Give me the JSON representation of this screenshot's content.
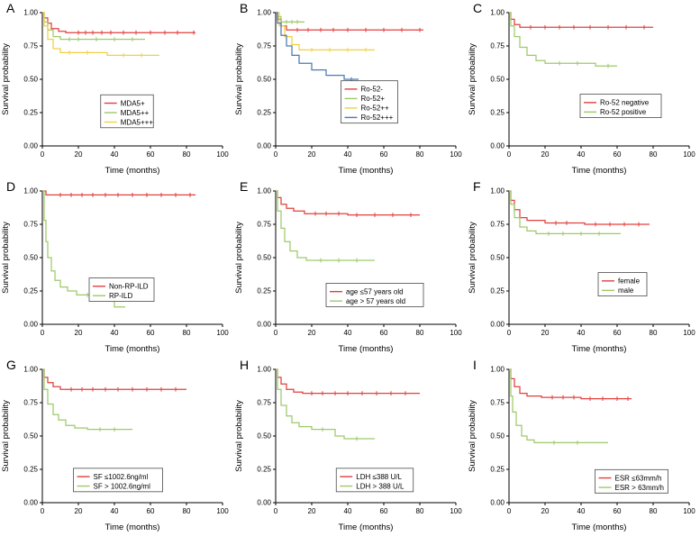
{
  "figure": {
    "ylabel": "Survival probability",
    "xlabel": "Time (months)",
    "colors": {
      "red": "#e2403c",
      "green": "#9dc969",
      "yellow": "#f0d143",
      "blue": "#4a7ab8"
    },
    "panels": [
      {
        "label": "A",
        "chart_data": {
          "type": "line",
          "step": true,
          "xlabel": "Time (months)",
          "ylabel": "Survival probability",
          "xlim": [
            0,
            100
          ],
          "ylim": [
            0,
            1
          ],
          "xticks": [
            0,
            20,
            40,
            60,
            80,
            100
          ],
          "yticks": [
            0,
            0.25,
            0.5,
            0.75,
            1
          ],
          "legend": {
            "x": 0.47,
            "y": 0.26
          },
          "series": [
            {
              "name": "MDA5+",
              "color": "#e2403c",
              "x": [
                0,
                1,
                3,
                5,
                9,
                13,
                85
              ],
              "y": [
                1,
                0.96,
                0.92,
                0.88,
                0.86,
                0.85,
                0.85
              ],
              "censors": [
                20,
                24,
                28,
                33,
                38,
                45,
                52,
                60,
                68,
                75,
                84
              ]
            },
            {
              "name": "MDA5++",
              "color": "#9dc969",
              "x": [
                0,
                1,
                3,
                6,
                10,
                57
              ],
              "y": [
                1,
                0.93,
                0.87,
                0.82,
                0.8,
                0.8
              ],
              "censors": [
                15,
                20,
                30,
                40,
                50
              ]
            },
            {
              "name": "MDA5+++",
              "color": "#f0d143",
              "x": [
                0,
                1,
                3,
                6,
                10,
                32,
                36,
                65
              ],
              "y": [
                1,
                0.9,
                0.8,
                0.73,
                0.7,
                0.7,
                0.68,
                0.68
              ],
              "censors": [
                15,
                25,
                45,
                55
              ]
            }
          ]
        }
      },
      {
        "label": "B",
        "chart_data": {
          "type": "line",
          "step": true,
          "xlabel": "Time (months)",
          "ylabel": "Survival probability",
          "xlim": [
            0,
            100
          ],
          "ylim": [
            0,
            1
          ],
          "xticks": [
            0,
            20,
            40,
            60,
            80,
            100
          ],
          "yticks": [
            0,
            0.25,
            0.5,
            0.75,
            1
          ],
          "legend": {
            "x": 0.52,
            "y": 0.33
          },
          "series": [
            {
              "name": "Ro-52-",
              "color": "#e2403c",
              "x": [
                0,
                1,
                3,
                6,
                82
              ],
              "y": [
                1,
                0.95,
                0.9,
                0.87,
                0.87
              ],
              "censors": [
                12,
                18,
                25,
                32,
                40,
                50,
                60,
                70,
                80
              ]
            },
            {
              "name": "Ro-52+",
              "color": "#9dc969",
              "x": [
                0,
                1,
                3,
                16
              ],
              "y": [
                1,
                0.97,
                0.93,
                0.93
              ],
              "censors": [
                6,
                9,
                12
              ]
            },
            {
              "name": "Ro-52++",
              "color": "#f0d143",
              "x": [
                0,
                2,
                5,
                9,
                13,
                55
              ],
              "y": [
                1,
                0.9,
                0.82,
                0.76,
                0.72,
                0.72
              ],
              "censors": [
                20,
                30,
                40,
                50
              ]
            },
            {
              "name": "Ro-52+++",
              "color": "#4a7ab8",
              "x": [
                0,
                1,
                3,
                6,
                9,
                13,
                20,
                28,
                38,
                46
              ],
              "y": [
                1,
                0.92,
                0.83,
                0.75,
                0.68,
                0.62,
                0.57,
                0.53,
                0.5,
                0.5
              ],
              "censors": [
                42
              ]
            }
          ]
        }
      },
      {
        "label": "C",
        "chart_data": {
          "type": "line",
          "step": true,
          "xlabel": "Time (months)",
          "ylabel": "Survival probability",
          "xlim": [
            0,
            100
          ],
          "ylim": [
            0,
            1
          ],
          "xticks": [
            0,
            20,
            40,
            60,
            80,
            100
          ],
          "yticks": [
            0,
            0.25,
            0.5,
            0.75,
            1
          ],
          "legend": {
            "x": 0.62,
            "y": 0.3
          },
          "series": [
            {
              "name": "Ro-52 negative",
              "color": "#e2403c",
              "x": [
                0,
                1,
                3,
                6,
                80
              ],
              "y": [
                1,
                0.95,
                0.91,
                0.89,
                0.89
              ],
              "censors": [
                12,
                20,
                28,
                36,
                45,
                55,
                65,
                75
              ]
            },
            {
              "name": "Ro-52 positive",
              "color": "#9dc969",
              "x": [
                0,
                1,
                3,
                6,
                10,
                15,
                20,
                48,
                60
              ],
              "y": [
                1,
                0.9,
                0.82,
                0.74,
                0.68,
                0.64,
                0.62,
                0.6,
                0.6
              ],
              "censors": [
                28,
                38,
                55
              ]
            }
          ]
        }
      },
      {
        "label": "D",
        "chart_data": {
          "type": "line",
          "step": true,
          "xlabel": "Time (months)",
          "ylabel": "Survival probability",
          "xlim": [
            0,
            100
          ],
          "ylim": [
            0,
            1
          ],
          "xticks": [
            0,
            20,
            40,
            60,
            80,
            100
          ],
          "yticks": [
            0,
            0.25,
            0.5,
            0.75,
            1
          ],
          "legend": {
            "x": 0.44,
            "y": 0.26
          },
          "series": [
            {
              "name": "Non-RP-ILD",
              "color": "#e2403c",
              "x": [
                0,
                2,
                85
              ],
              "y": [
                1,
                0.97,
                0.97
              ],
              "censors": [
                10,
                16,
                22,
                28,
                35,
                42,
                50,
                58,
                66,
                74,
                82
              ]
            },
            {
              "name": "RP-ILD",
              "color": "#9dc969",
              "x": [
                0,
                1,
                2,
                3,
                5,
                7,
                10,
                14,
                19,
                34,
                40,
                46
              ],
              "y": [
                1,
                0.78,
                0.62,
                0.5,
                0.4,
                0.33,
                0.28,
                0.25,
                0.22,
                0.22,
                0.13,
                0.13
              ],
              "censors": [
                25
              ]
            }
          ]
        }
      },
      {
        "label": "E",
        "chart_data": {
          "type": "line",
          "step": true,
          "xlabel": "Time (months)",
          "ylabel": "Survival probability",
          "xlim": [
            0,
            100
          ],
          "ylim": [
            0,
            1
          ],
          "xticks": [
            0,
            20,
            40,
            60,
            80,
            100
          ],
          "yticks": [
            0,
            0.25,
            0.5,
            0.75,
            1
          ],
          "legend": {
            "x": 0.55,
            "y": 0.22
          },
          "series": [
            {
              "name": "age ≤57 years old",
              "color": "#e2403c",
              "x": [
                0,
                1,
                3,
                6,
                10,
                16,
                40,
                80
              ],
              "y": [
                1,
                0.95,
                0.9,
                0.87,
                0.85,
                0.83,
                0.82,
                0.82
              ],
              "censors": [
                22,
                28,
                35,
                45,
                55,
                65,
                75
              ]
            },
            {
              "name": "age > 57 years old",
              "color": "#9dc969",
              "x": [
                0,
                1,
                3,
                5,
                8,
                12,
                17,
                55
              ],
              "y": [
                1,
                0.85,
                0.72,
                0.62,
                0.55,
                0.5,
                0.48,
                0.48
              ],
              "censors": [
                25,
                35,
                45
              ]
            }
          ]
        }
      },
      {
        "label": "F",
        "chart_data": {
          "type": "line",
          "step": true,
          "xlabel": "Time (months)",
          "ylabel": "Survival probability",
          "xlim": [
            0,
            100
          ],
          "ylim": [
            0,
            1
          ],
          "xticks": [
            0,
            20,
            40,
            60,
            80,
            100
          ],
          "yticks": [
            0,
            0.25,
            0.5,
            0.75,
            1
          ],
          "legend": {
            "x": 0.63,
            "y": 0.3
          },
          "series": [
            {
              "name": "female",
              "color": "#e2403c",
              "x": [
                0,
                1,
                3,
                6,
                10,
                20,
                42,
                78
              ],
              "y": [
                1,
                0.93,
                0.86,
                0.8,
                0.78,
                0.76,
                0.75,
                0.75
              ],
              "censors": [
                26,
                32,
                48,
                56,
                64,
                72
              ]
            },
            {
              "name": "male",
              "color": "#9dc969",
              "x": [
                0,
                1,
                3,
                6,
                10,
                15,
                62
              ],
              "y": [
                1,
                0.9,
                0.8,
                0.73,
                0.7,
                0.68,
                0.68
              ],
              "censors": [
                22,
                30,
                40,
                50
              ]
            }
          ]
        }
      },
      {
        "label": "G",
        "chart_data": {
          "type": "line",
          "step": true,
          "xlabel": "Time (months)",
          "ylabel": "Survival probability",
          "xlim": [
            0,
            100
          ],
          "ylim": [
            0,
            1
          ],
          "xticks": [
            0,
            20,
            40,
            60,
            80,
            100
          ],
          "yticks": [
            0,
            0.25,
            0.5,
            0.75,
            1
          ],
          "legend": {
            "x": 0.42,
            "y": 0.17
          },
          "series": [
            {
              "name": "SF ≤1002.6ng/ml",
              "color": "#e2403c",
              "x": [
                0,
                1,
                3,
                6,
                10,
                80
              ],
              "y": [
                1,
                0.94,
                0.9,
                0.87,
                0.85,
                0.85
              ],
              "censors": [
                16,
                22,
                28,
                35,
                42,
                50,
                58,
                66,
                74
              ]
            },
            {
              "name": "SF > 1002.6ng/ml",
              "color": "#9dc969",
              "x": [
                0,
                1,
                3,
                6,
                9,
                13,
                18,
                25,
                50
              ],
              "y": [
                1,
                0.85,
                0.74,
                0.66,
                0.62,
                0.58,
                0.56,
                0.55,
                0.55
              ],
              "censors": [
                32,
                40
              ]
            }
          ]
        }
      },
      {
        "label": "H",
        "chart_data": {
          "type": "line",
          "step": true,
          "xlabel": "Time (months)",
          "ylabel": "Survival probability",
          "xlim": [
            0,
            100
          ],
          "ylim": [
            0,
            1
          ],
          "xticks": [
            0,
            20,
            40,
            60,
            80,
            100
          ],
          "yticks": [
            0,
            0.25,
            0.5,
            0.75,
            1
          ],
          "legend": {
            "x": 0.55,
            "y": 0.17
          },
          "series": [
            {
              "name": "LDH ≤388 U/L",
              "color": "#e2403c",
              "x": [
                0,
                1,
                3,
                6,
                10,
                15,
                80
              ],
              "y": [
                1,
                0.94,
                0.89,
                0.85,
                0.83,
                0.82,
                0.82
              ],
              "censors": [
                20,
                26,
                33,
                40,
                48,
                56,
                64,
                72
              ]
            },
            {
              "name": "LDH > 388 U/L",
              "color": "#9dc969",
              "x": [
                0,
                1,
                3,
                6,
                9,
                13,
                20,
                33,
                38,
                55
              ],
              "y": [
                1,
                0.85,
                0.73,
                0.65,
                0.6,
                0.57,
                0.55,
                0.5,
                0.48,
                0.48
              ],
              "censors": [
                26,
                45
              ]
            }
          ]
        }
      },
      {
        "label": "I",
        "chart_data": {
          "type": "line",
          "step": true,
          "xlabel": "Time (months)",
          "ylabel": "Survival probability",
          "xlim": [
            0,
            100
          ],
          "ylim": [
            0,
            1
          ],
          "xticks": [
            0,
            20,
            40,
            60,
            80,
            100
          ],
          "yticks": [
            0,
            0.25,
            0.5,
            0.75,
            1
          ],
          "legend": {
            "x": 0.68,
            "y": 0.16
          },
          "series": [
            {
              "name": "ESR ≤63mm/h",
              "color": "#e2403c",
              "x": [
                0,
                1,
                3,
                6,
                10,
                18,
                40,
                68
              ],
              "y": [
                1,
                0.93,
                0.87,
                0.82,
                0.8,
                0.79,
                0.78,
                0.78
              ],
              "censors": [
                24,
                30,
                36,
                45,
                52,
                60,
                66
              ]
            },
            {
              "name": "ESR > 63mm/h",
              "color": "#9dc969",
              "x": [
                0,
                1,
                2,
                4,
                7,
                10,
                14,
                55
              ],
              "y": [
                1,
                0.8,
                0.68,
                0.58,
                0.5,
                0.47,
                0.45,
                0.45
              ],
              "censors": [
                25,
                38
              ]
            }
          ]
        }
      }
    ]
  }
}
